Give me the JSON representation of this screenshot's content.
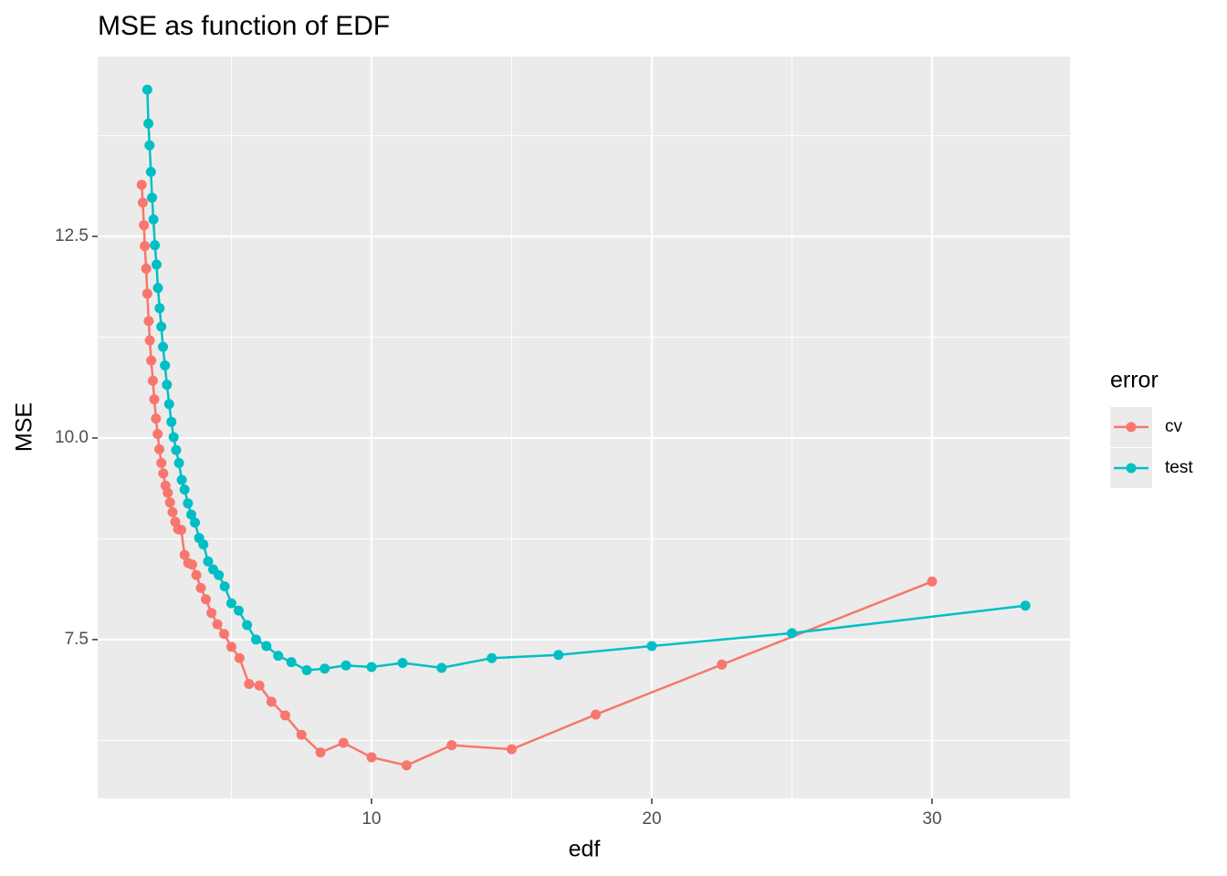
{
  "chart_data": {
    "type": "line",
    "title": "MSE as function of EDF",
    "x_label": "edf",
    "y_label": "MSE",
    "legend_title": "error",
    "legend_position": "right",
    "grid": true,
    "xlim": [
      0.23,
      34.92
    ],
    "ylim": [
      5.53,
      14.73
    ],
    "xticks": [
      10,
      20,
      30
    ],
    "yticks": [
      7.5,
      {
        "value": 10,
        "label": "10.0"
      },
      12.5
    ],
    "x_minor_ticks": [
      5,
      15,
      25
    ],
    "y_minor_ticks": [
      6.25,
      8.75,
      11.25,
      13.75
    ],
    "series": [
      {
        "name": "cv",
        "color": "#F8766D",
        "x": [
          30,
          22.5,
          18,
          15,
          12.86,
          11.25,
          10,
          9,
          8.18,
          7.5,
          6.92,
          6.43,
          6,
          5.63,
          5.29,
          5,
          4.74,
          4.5,
          4.29,
          4.09,
          3.91,
          3.75,
          3.6,
          3.46,
          3.33,
          3.21,
          3.1,
          3,
          2.9,
          2.81,
          2.73,
          2.65,
          2.57,
          2.5,
          2.43,
          2.37,
          2.31,
          2.25,
          2.2,
          2.14,
          2.09,
          2.05,
          2,
          1.96,
          1.91,
          1.88,
          1.84,
          1.8
        ],
        "values": [
          8.22,
          7.19,
          6.57,
          6.14,
          6.19,
          5.94,
          6.04,
          6.22,
          6.1,
          6.32,
          6.56,
          6.73,
          6.93,
          6.95,
          7.27,
          7.41,
          7.57,
          7.69,
          7.83,
          8.0,
          8.14,
          8.3,
          8.43,
          8.45,
          8.55,
          8.86,
          8.87,
          8.96,
          9.08,
          9.2,
          9.32,
          9.41,
          9.56,
          9.69,
          9.86,
          10.05,
          10.24,
          10.48,
          10.71,
          10.96,
          11.21,
          11.45,
          11.79,
          12.1,
          12.38,
          12.64,
          12.92,
          13.14
        ]
      },
      {
        "name": "test",
        "color": "#00BFC4",
        "x": [
          33.33,
          25,
          20,
          16.67,
          14.29,
          12.5,
          11.11,
          10,
          9.09,
          8.33,
          7.69,
          7.14,
          6.67,
          6.25,
          5.88,
          5.56,
          5.26,
          5,
          4.76,
          4.55,
          4.35,
          4.17,
          4,
          3.85,
          3.7,
          3.57,
          3.45,
          3.33,
          3.23,
          3.13,
          3.03,
          2.94,
          2.86,
          2.78,
          2.7,
          2.63,
          2.56,
          2.5,
          2.44,
          2.38,
          2.33,
          2.27,
          2.22,
          2.17,
          2.13,
          2.08,
          2.04,
          2
        ],
        "values": [
          7.92,
          7.58,
          7.42,
          7.31,
          7.27,
          7.15,
          7.21,
          7.16,
          7.18,
          7.14,
          7.12,
          7.22,
          7.3,
          7.42,
          7.5,
          7.68,
          7.86,
          7.95,
          8.16,
          8.3,
          8.37,
          8.47,
          8.68,
          8.76,
          8.95,
          9.05,
          9.19,
          9.36,
          9.48,
          9.69,
          9.85,
          10.01,
          10.2,
          10.42,
          10.66,
          10.9,
          11.13,
          11.38,
          11.61,
          11.86,
          12.15,
          12.39,
          12.71,
          12.98,
          13.3,
          13.63,
          13.9,
          14.32
        ]
      }
    ]
  }
}
